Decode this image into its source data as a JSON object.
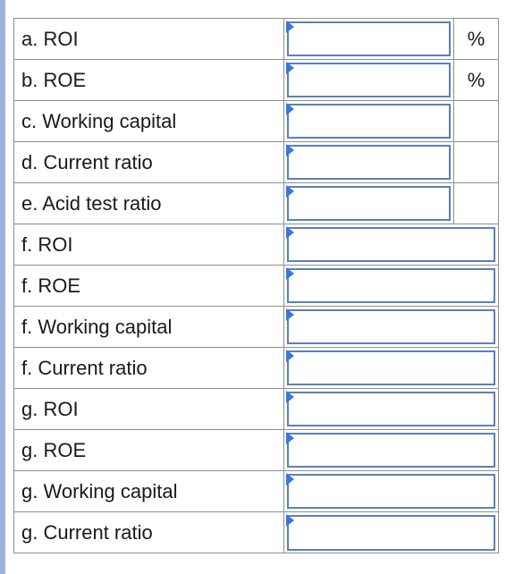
{
  "rows": [
    {
      "label": "a. ROI",
      "value": "",
      "unit": "%",
      "has_unit_col": true
    },
    {
      "label": "b. ROE",
      "value": "",
      "unit": "%",
      "has_unit_col": true
    },
    {
      "label": "c. Working capital",
      "value": "",
      "unit": "",
      "has_unit_col": true
    },
    {
      "label": "d. Current ratio",
      "value": "",
      "unit": "",
      "has_unit_col": true
    },
    {
      "label": "e. Acid test ratio",
      "value": "",
      "unit": "",
      "has_unit_col": true
    },
    {
      "label": "f. ROI",
      "value": "",
      "unit": "",
      "has_unit_col": false
    },
    {
      "label": "f. ROE",
      "value": "",
      "unit": "",
      "has_unit_col": false
    },
    {
      "label": "f. Working capital",
      "value": "",
      "unit": "",
      "has_unit_col": false
    },
    {
      "label": "f. Current ratio",
      "value": "",
      "unit": "",
      "has_unit_col": false
    },
    {
      "label": "g. ROI",
      "value": "",
      "unit": "",
      "has_unit_col": false
    },
    {
      "label": "g. ROE",
      "value": "",
      "unit": "",
      "has_unit_col": false
    },
    {
      "label": "g. Working capital",
      "value": "",
      "unit": "",
      "has_unit_col": false
    },
    {
      "label": "g. Current ratio",
      "value": "",
      "unit": "",
      "has_unit_col": false
    }
  ],
  "colors": {
    "input_border": "#5b80b8",
    "flag": "#3a78d8",
    "grid_line": "#8f8f8f",
    "left_accent": "#9db3dc"
  }
}
